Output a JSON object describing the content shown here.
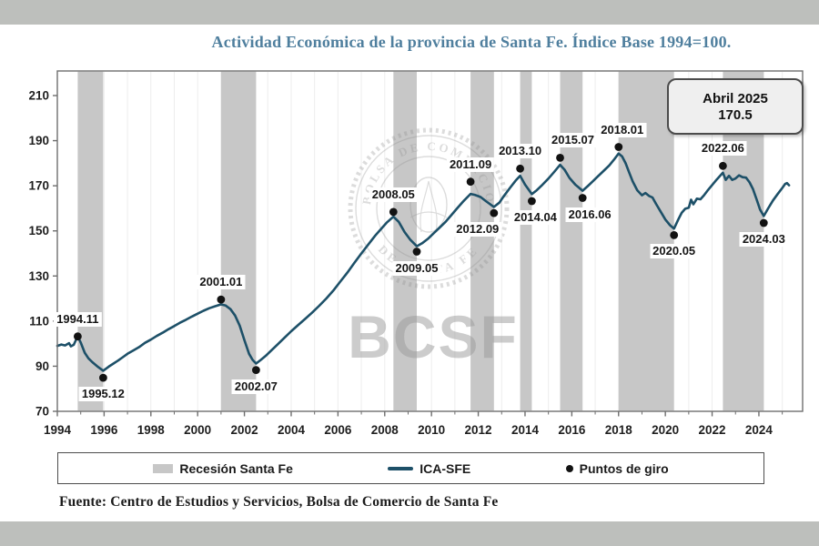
{
  "title": "Actividad Económica de la provincia de Santa Fe. Índice Base 1994=100.",
  "annotation": {
    "line1": "Abril 2025",
    "line2": "170.5"
  },
  "source": "Fuente: Centro de Estudios y Servicios, Bolsa de Comercio de Santa Fe",
  "watermark": {
    "seal_top": "BOLSA DE COMERCIO",
    "seal_bottom": "DE SANTA FE",
    "big_text": "BCSF"
  },
  "legend": {
    "items": [
      {
        "label": "Recesión Santa Fe",
        "swatch": "band"
      },
      {
        "label": "ICA-SFE",
        "swatch": "line"
      },
      {
        "label": "Puntos de giro",
        "swatch": "dot"
      }
    ]
  },
  "colors": {
    "line": "#1d5068",
    "band": "#c7c7c7",
    "dot": "#121212",
    "title": "#4f7f9e",
    "strip": "#bdbfbc",
    "watermark": "#8f8f8f",
    "grid": "#ededed",
    "axis": "#6e6e6e"
  },
  "chart_data": {
    "type": "line",
    "title": "Actividad Económica de la provincia de Santa Fe. Índice Base 1994=100.",
    "xlabel": "",
    "ylabel": "",
    "x_range": [
      1994,
      2025.87
    ],
    "y_range": [
      70,
      220.9
    ],
    "x_ticks_major": [
      1994,
      1996,
      1998,
      2000,
      2002,
      2004,
      2006,
      2008,
      2010,
      2012,
      2014,
      2016,
      2018,
      2020,
      2022,
      2024
    ],
    "x_ticks_minor": [
      1995,
      1997,
      1999,
      2001,
      2003,
      2005,
      2007,
      2009,
      2011,
      2013,
      2015,
      2017,
      2019,
      2021,
      2023,
      2025
    ],
    "y_ticks": [
      70,
      90,
      110,
      130,
      150,
      170,
      190,
      210
    ],
    "grid": "faint vertical yearly gridlines",
    "legend_position": "bottom",
    "recessions": [
      [
        1994.87,
        1995.96
      ],
      [
        2001.0,
        2002.5
      ],
      [
        2008.37,
        2009.37
      ],
      [
        2011.67,
        2012.67
      ],
      [
        2013.79,
        2014.29
      ],
      [
        2015.5,
        2016.46
      ],
      [
        2018.0,
        2020.37
      ],
      [
        2022.46,
        2024.21
      ]
    ],
    "turning_points": [
      {
        "label": "1994.11",
        "year": 1994.87,
        "value": 103.2,
        "side": "above",
        "dx": 0
      },
      {
        "label": "1995.12",
        "year": 1995.96,
        "value": 84.9,
        "side": "below",
        "dx": 0
      },
      {
        "label": "2001.01",
        "year": 2001.0,
        "value": 119.6,
        "side": "above",
        "dx": 0
      },
      {
        "label": "2002.07",
        "year": 2002.5,
        "value": 88.3,
        "side": "below",
        "dx": 0
      },
      {
        "label": "2008.05",
        "year": 2008.37,
        "value": 158.4,
        "side": "above",
        "dx": 0
      },
      {
        "label": "2009.05",
        "year": 2009.37,
        "value": 140.8,
        "side": "below",
        "dx": 0
      },
      {
        "label": "2011.09",
        "year": 2011.67,
        "value": 171.8,
        "side": "above",
        "dx": 0
      },
      {
        "label": "2012.09",
        "year": 2012.67,
        "value": 157.9,
        "side": "below",
        "dx": -18
      },
      {
        "label": "2013.10",
        "year": 2013.79,
        "value": 177.6,
        "side": "above",
        "dx": 0
      },
      {
        "label": "2014.04",
        "year": 2014.29,
        "value": 163.2,
        "side": "below",
        "dx": 4
      },
      {
        "label": "2015.07",
        "year": 2015.5,
        "value": 182.4,
        "side": "above",
        "dx": 14
      },
      {
        "label": "2016.06",
        "year": 2016.46,
        "value": 164.6,
        "side": "below",
        "dx": 8
      },
      {
        "label": "2018.01",
        "year": 2018.0,
        "value": 187.2,
        "side": "above",
        "dx": 4
      },
      {
        "label": "2020.05",
        "year": 2020.37,
        "value": 148.1,
        "side": "below",
        "dx": 0
      },
      {
        "label": "2022.06",
        "year": 2022.46,
        "value": 178.8,
        "side": "above",
        "dx": 0
      },
      {
        "label": "2024.03",
        "year": 2024.21,
        "value": 153.5,
        "side": "below",
        "dx": 0
      }
    ],
    "series": [
      {
        "name": "ICA-SFE",
        "points": [
          [
            1994.0,
            99
          ],
          [
            1994.17,
            99.6
          ],
          [
            1994.33,
            99.2
          ],
          [
            1994.5,
            100.2
          ],
          [
            1994.58,
            98.8
          ],
          [
            1994.7,
            99.5
          ],
          [
            1994.87,
            103.3
          ],
          [
            1995.0,
            100.5
          ],
          [
            1995.17,
            96
          ],
          [
            1995.33,
            93.5
          ],
          [
            1995.5,
            91.8
          ],
          [
            1995.7,
            90
          ],
          [
            1995.96,
            88
          ],
          [
            1996.2,
            89.8
          ],
          [
            1996.4,
            91.2
          ],
          [
            1996.6,
            92.5
          ],
          [
            1996.8,
            94
          ],
          [
            1997.0,
            95.5
          ],
          [
            1997.25,
            97
          ],
          [
            1997.5,
            98.5
          ],
          [
            1997.75,
            100.4
          ],
          [
            1998.0,
            101.8
          ],
          [
            1998.25,
            103.4
          ],
          [
            1998.5,
            104.8
          ],
          [
            1998.75,
            106.4
          ],
          [
            1999.0,
            107.8
          ],
          [
            1999.25,
            109.3
          ],
          [
            1999.5,
            110.6
          ],
          [
            1999.75,
            112
          ],
          [
            2000.0,
            113.3
          ],
          [
            2000.25,
            114.6
          ],
          [
            2000.5,
            115.7
          ],
          [
            2000.75,
            116.6
          ],
          [
            2001.0,
            117.4
          ],
          [
            2001.2,
            116.9
          ],
          [
            2001.4,
            115.3
          ],
          [
            2001.6,
            112.5
          ],
          [
            2001.8,
            108
          ],
          [
            2002.0,
            101.5
          ],
          [
            2002.2,
            95.5
          ],
          [
            2002.35,
            92.8
          ],
          [
            2002.5,
            91.2
          ],
          [
            2002.7,
            92.8
          ],
          [
            2002.9,
            94.5
          ],
          [
            2003.1,
            96.5
          ],
          [
            2003.4,
            99.5
          ],
          [
            2003.7,
            102.5
          ],
          [
            2004.0,
            105.5
          ],
          [
            2004.3,
            108.3
          ],
          [
            2004.6,
            111
          ],
          [
            2004.9,
            113.8
          ],
          [
            2005.2,
            116.8
          ],
          [
            2005.5,
            120
          ],
          [
            2005.8,
            123.5
          ],
          [
            2006.1,
            127.5
          ],
          [
            2006.4,
            131.5
          ],
          [
            2006.7,
            135.8
          ],
          [
            2007.0,
            140
          ],
          [
            2007.3,
            144
          ],
          [
            2007.6,
            148
          ],
          [
            2007.9,
            151.5
          ],
          [
            2008.1,
            153.8
          ],
          [
            2008.37,
            156.3
          ],
          [
            2008.6,
            154
          ],
          [
            2008.85,
            149.5
          ],
          [
            2009.1,
            146
          ],
          [
            2009.37,
            143.2
          ],
          [
            2009.6,
            144.5
          ],
          [
            2009.85,
            146.5
          ],
          [
            2010.1,
            149
          ],
          [
            2010.35,
            151.5
          ],
          [
            2010.6,
            154
          ],
          [
            2010.85,
            157
          ],
          [
            2011.1,
            160
          ],
          [
            2011.35,
            163
          ],
          [
            2011.67,
            166.4
          ],
          [
            2011.85,
            166
          ],
          [
            2012.1,
            165
          ],
          [
            2012.35,
            163
          ],
          [
            2012.67,
            160.6
          ],
          [
            2012.9,
            162.5
          ],
          [
            2013.1,
            165.5
          ],
          [
            2013.35,
            169
          ],
          [
            2013.6,
            172.3
          ],
          [
            2013.79,
            174.4
          ],
          [
            2014.0,
            170.5
          ],
          [
            2014.29,
            166.3
          ],
          [
            2014.5,
            168
          ],
          [
            2014.75,
            170.5
          ],
          [
            2015.0,
            173.2
          ],
          [
            2015.25,
            176.2
          ],
          [
            2015.5,
            179.3
          ],
          [
            2015.7,
            177
          ],
          [
            2015.9,
            173.5
          ],
          [
            2016.15,
            170.5
          ],
          [
            2016.46,
            167.8
          ],
          [
            2016.7,
            170
          ],
          [
            2016.9,
            172
          ],
          [
            2017.1,
            174
          ],
          [
            2017.35,
            176.5
          ],
          [
            2017.6,
            179
          ],
          [
            2017.8,
            181.5
          ],
          [
            2018.0,
            184.3
          ],
          [
            2018.15,
            183
          ],
          [
            2018.3,
            180
          ],
          [
            2018.45,
            176
          ],
          [
            2018.6,
            172
          ],
          [
            2018.8,
            168
          ],
          [
            2019.0,
            165.8
          ],
          [
            2019.15,
            166.8
          ],
          [
            2019.3,
            165.5
          ],
          [
            2019.45,
            164.8
          ],
          [
            2019.6,
            162
          ],
          [
            2019.8,
            158.5
          ],
          [
            2020.0,
            155
          ],
          [
            2020.2,
            152.5
          ],
          [
            2020.37,
            151
          ],
          [
            2020.55,
            155
          ],
          [
            2020.7,
            158
          ],
          [
            2020.85,
            159.8
          ],
          [
            2021.0,
            160.3
          ],
          [
            2021.1,
            163.8
          ],
          [
            2021.2,
            161.8
          ],
          [
            2021.35,
            164.3
          ],
          [
            2021.5,
            164
          ],
          [
            2021.65,
            165.8
          ],
          [
            2021.8,
            167.8
          ],
          [
            2022.0,
            170.3
          ],
          [
            2022.2,
            172.8
          ],
          [
            2022.46,
            175.8
          ],
          [
            2022.58,
            172.6
          ],
          [
            2022.72,
            174.4
          ],
          [
            2022.86,
            172.6
          ],
          [
            2023.0,
            173.2
          ],
          [
            2023.15,
            174.6
          ],
          [
            2023.3,
            173.8
          ],
          [
            2023.45,
            173.6
          ],
          [
            2023.6,
            171.5
          ],
          [
            2023.75,
            168.5
          ],
          [
            2023.9,
            164
          ],
          [
            2024.05,
            159.5
          ],
          [
            2024.21,
            156.6
          ],
          [
            2024.4,
            160
          ],
          [
            2024.6,
            163.5
          ],
          [
            2024.8,
            166.3
          ],
          [
            2025.0,
            169
          ],
          [
            2025.12,
            170.8
          ],
          [
            2025.2,
            171.2
          ],
          [
            2025.29,
            170.2
          ]
        ]
      }
    ]
  }
}
